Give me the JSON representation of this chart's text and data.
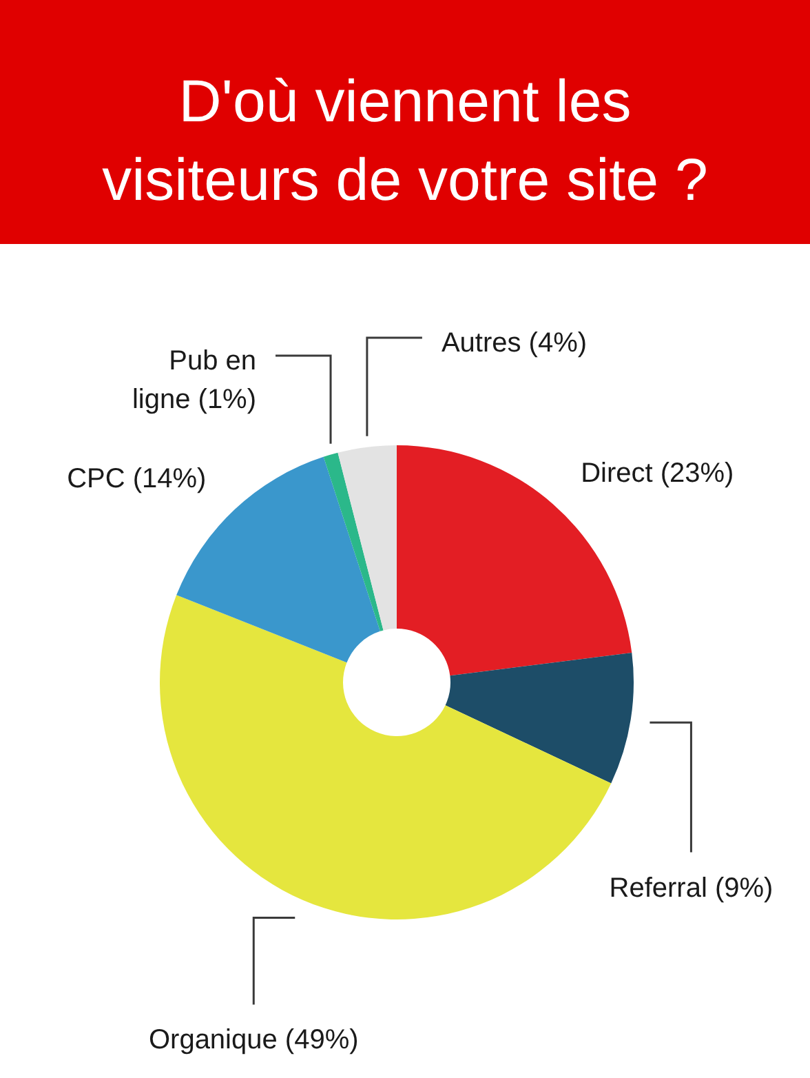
{
  "chart_data": {
    "type": "donut",
    "title": "D'où viennent les visiteurs de votre site ?",
    "categories": [
      "Direct (23%)",
      "Referral (9%)",
      "Organique (49%)",
      "CPC (14%)",
      "Pub en\nligne (1%)",
      "Autres (4%)"
    ],
    "values": [
      23,
      9,
      49,
      14,
      1,
      4
    ],
    "colors": [
      "#e31e24",
      "#1d4d68",
      "#e5e63e",
      "#3a97cc",
      "#2bb88a",
      "#e3e3e3"
    ]
  }
}
